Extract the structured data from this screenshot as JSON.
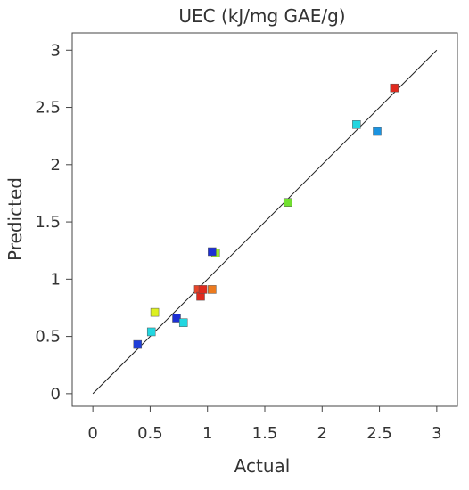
{
  "chart_data": {
    "type": "scatter",
    "title": "UEC  (kJ/mg GAE/g)",
    "xlabel": "Actual",
    "ylabel": "Predicted",
    "xlim": [
      -0.18,
      3.18
    ],
    "ylim": [
      -0.11,
      3.15
    ],
    "x_ticks": [
      0,
      0.5,
      1,
      1.5,
      2,
      2.5,
      3
    ],
    "x_tick_labels": [
      "0",
      "0.5",
      "1",
      "1.5",
      "2",
      "2.5",
      "3"
    ],
    "y_ticks": [
      0,
      0.5,
      1,
      1.5,
      2,
      2.5,
      3
    ],
    "y_tick_labels": [
      "0",
      "0.5",
      "1",
      "1.5",
      "2",
      "2.5",
      "3"
    ],
    "grid": false,
    "legend": "none",
    "reference_line": {
      "from": [
        0,
        0
      ],
      "to": [
        3,
        3
      ],
      "color": "#222222"
    },
    "points": [
      {
        "x": 0.39,
        "y": 0.43,
        "color": "#1f3ed8"
      },
      {
        "x": 0.51,
        "y": 0.54,
        "color": "#22d6e0"
      },
      {
        "x": 0.54,
        "y": 0.71,
        "color": "#ddf020"
      },
      {
        "x": 0.73,
        "y": 0.66,
        "color": "#1c2fd4"
      },
      {
        "x": 0.79,
        "y": 0.62,
        "color": "#22d6e0"
      },
      {
        "x": 0.92,
        "y": 0.91,
        "color": "#e8452a"
      },
      {
        "x": 0.94,
        "y": 0.85,
        "color": "#e02a1e"
      },
      {
        "x": 0.96,
        "y": 0.91,
        "color": "#e02a1e"
      },
      {
        "x": 1.04,
        "y": 0.91,
        "color": "#ec7a1e"
      },
      {
        "x": 1.07,
        "y": 1.23,
        "color": "#9be830"
      },
      {
        "x": 1.04,
        "y": 1.24,
        "color": "#1c2fd4"
      },
      {
        "x": 1.7,
        "y": 1.67,
        "color": "#72e030"
      },
      {
        "x": 2.3,
        "y": 2.35,
        "color": "#22d6e0"
      },
      {
        "x": 2.48,
        "y": 2.29,
        "color": "#1b93e0"
      },
      {
        "x": 2.63,
        "y": 2.67,
        "color": "#e02a1e"
      }
    ]
  }
}
